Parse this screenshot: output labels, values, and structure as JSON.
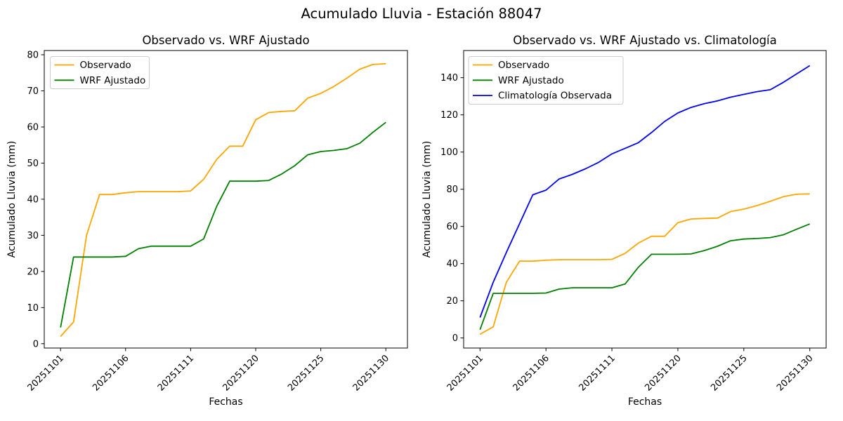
{
  "figure": {
    "title": "Acumulado Lluvia - Estación 88047",
    "background": "#ffffff"
  },
  "chart_data": [
    {
      "type": "line",
      "title": "Observado vs. WRF Ajustado",
      "xlabel": "Fechas",
      "ylabel": "Acumulado Lluvia (mm)",
      "x_dates": [
        "20251101",
        "20251102",
        "20251103",
        "20251104",
        "20251105",
        "20251106",
        "20251107",
        "20251108",
        "20251109",
        "20251110",
        "20251111",
        "20251116",
        "20251117",
        "20251118",
        "20251119",
        "20251120",
        "20251121",
        "20251122",
        "20251123",
        "20251124",
        "20251125",
        "20251126",
        "20251127",
        "20251128",
        "20251129",
        "20251130"
      ],
      "xtick_indices": [
        0,
        5,
        10,
        15,
        20,
        25
      ],
      "xtick_labels": [
        "20251101",
        "20251106",
        "20251111",
        "20251120",
        "20251125",
        "20251130"
      ],
      "yticks": [
        0,
        10,
        20,
        30,
        40,
        50,
        60,
        70,
        80
      ],
      "xlim": [
        -1.25,
        26.66
      ],
      "ylim": [
        -1.2,
        81.17
      ],
      "grid": false,
      "legend_position": "upper-left",
      "series": [
        {
          "name": "Observado",
          "color": "#FFA500",
          "values": [
            2,
            6,
            30,
            41.3,
            41.3,
            41.8,
            42.1,
            42.1,
            42.1,
            42.1,
            42.3,
            45.5,
            51,
            54.7,
            54.7,
            62,
            64,
            64.3,
            64.5,
            68,
            69.3,
            71.2,
            73.5,
            76,
            77.3,
            77.5
          ]
        },
        {
          "name": "WRF Ajustado",
          "color": "#008000",
          "values": [
            4.5,
            24,
            24,
            24,
            24,
            24.2,
            26.3,
            27,
            27,
            27,
            27,
            29,
            38,
            45,
            45,
            45,
            45.2,
            47,
            49.3,
            52.3,
            53.2,
            53.5,
            54,
            55.5,
            58.5,
            61.3
          ]
        }
      ]
    },
    {
      "type": "line",
      "title": "Observado vs. WRF Ajustado vs. Climatología",
      "xlabel": "Fechas",
      "ylabel": "Acumulado Lluvia (mm)",
      "x_dates": [
        "20251101",
        "20251102",
        "20251103",
        "20251104",
        "20251105",
        "20251106",
        "20251107",
        "20251108",
        "20251109",
        "20251110",
        "20251111",
        "20251116",
        "20251117",
        "20251118",
        "20251119",
        "20251120",
        "20251121",
        "20251122",
        "20251123",
        "20251124",
        "20251125",
        "20251126",
        "20251127",
        "20251128",
        "20251129",
        "20251130"
      ],
      "xtick_indices": [
        0,
        5,
        10,
        15,
        20,
        25
      ],
      "xtick_labels": [
        "20251101",
        "20251106",
        "20251111",
        "20251120",
        "20251125",
        "20251130"
      ],
      "yticks": [
        0,
        20,
        40,
        60,
        80,
        100,
        120,
        140
      ],
      "xlim": [
        -1.24,
        26.24
      ],
      "ylim": [
        -5.4,
        154.6
      ],
      "grid": false,
      "legend_position": "upper-left",
      "series": [
        {
          "name": "Observado",
          "color": "#FFA500",
          "values": [
            2,
            6,
            30,
            41.3,
            41.3,
            41.8,
            42.1,
            42.1,
            42.1,
            42.1,
            42.3,
            45.5,
            51,
            54.7,
            54.7,
            62,
            64,
            64.3,
            64.5,
            68,
            69.3,
            71.2,
            73.5,
            76,
            77.3,
            77.5
          ]
        },
        {
          "name": "WRF Ajustado",
          "color": "#008000",
          "values": [
            4.5,
            24,
            24,
            24,
            24,
            24.2,
            26.3,
            27,
            27,
            27,
            27,
            29,
            38,
            45,
            45,
            45,
            45.2,
            47,
            49.3,
            52.3,
            53.2,
            53.5,
            54,
            55.5,
            58.5,
            61.3
          ]
        },
        {
          "name": "Climatología Observada",
          "color": "#0000FF",
          "values": [
            11,
            30,
            46,
            61.5,
            77,
            79.5,
            85.5,
            88,
            91,
            94.5,
            99,
            102,
            105,
            110.5,
            116.5,
            121,
            124,
            126,
            127.5,
            129.5,
            131,
            132.5,
            133.5,
            137.5,
            142,
            146.5
          ]
        }
      ]
    }
  ]
}
